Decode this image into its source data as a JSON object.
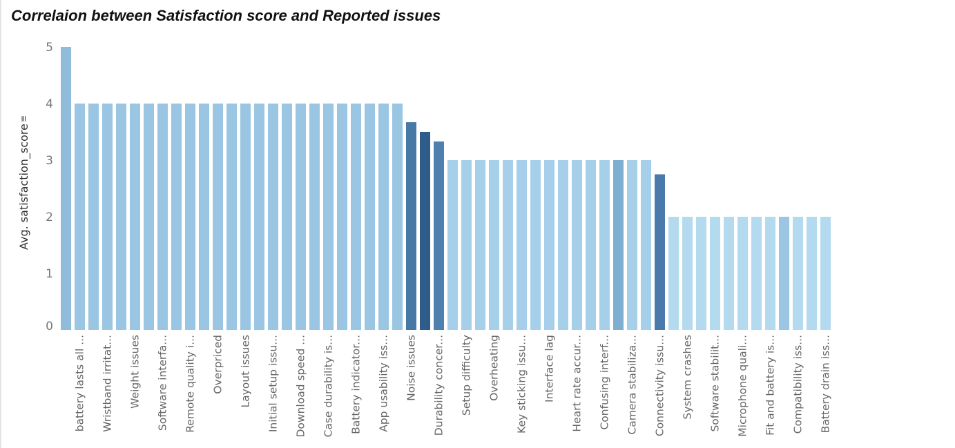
{
  "chart_data": {
    "type": "bar",
    "title": "Correlaion between Satisfaction score and Reported issues",
    "ylabel": "Avg. satisfaction_score",
    "ylabel_sort_marker": "≡",
    "xlabel": "",
    "ylim": [
      0,
      5
    ],
    "yticks": [
      0,
      1,
      2,
      3,
      4,
      5
    ],
    "grid": false,
    "legend": "none",
    "categories": [
      "",
      "battery lasts all ...",
      "",
      "Wristband irritat...",
      "",
      "Weight issues",
      "",
      "Software interfa...",
      "",
      "Remote quality i...",
      "",
      "Overpriced",
      "",
      "Layout issues",
      "",
      "Initial setup issu...",
      "",
      "Download speed ...",
      "",
      "Case durability is...",
      "",
      "Battery indicator...",
      "",
      "App usability iss...",
      "",
      "Noise issues",
      "",
      "Durability concer...",
      "",
      "Setup difficulty",
      "",
      "Overheating",
      "",
      "Key sticking issu...",
      "",
      "Interface lag",
      "",
      "Heart rate accur...",
      "",
      "Confusing interf...",
      "",
      "Camera stabiliza...",
      "",
      "Connectivity issu...",
      "",
      "System crashes",
      "",
      "Software stabilit...",
      "",
      "Microphone quali...",
      "",
      "Fit and battery is...",
      "",
      "Compatibility iss...",
      "",
      "Battery drain iss..."
    ],
    "values": [
      5,
      4,
      4,
      4,
      4,
      4,
      4,
      4,
      4,
      4,
      4,
      4,
      4,
      4,
      4,
      4,
      4,
      4,
      4,
      4,
      4,
      4,
      4,
      4,
      4,
      3.67,
      3.5,
      3.33,
      3,
      3,
      3,
      3,
      3,
      3,
      3,
      3,
      3,
      3,
      3,
      3,
      3,
      3,
      3,
      2.75,
      2,
      2,
      2,
      2,
      2,
      2,
      2,
      2,
      2,
      2,
      2,
      2
    ],
    "colors": [
      "#8fbcdb",
      "#9ac6e3",
      "#9ac6e3",
      "#9ac6e3",
      "#9ac6e3",
      "#9ac6e3",
      "#9ac6e3",
      "#9ac6e3",
      "#9ac6e3",
      "#9ac6e3",
      "#9ac6e3",
      "#9ac6e3",
      "#9ac6e3",
      "#9ac6e3",
      "#9ac6e3",
      "#9ac6e3",
      "#9ac6e3",
      "#9ac6e3",
      "#9ac6e3",
      "#9ac6e3",
      "#9ac6e3",
      "#9ac6e3",
      "#9ac6e3",
      "#9ac6e3",
      "#9ac6e3",
      "#4878a6",
      "#2e5d8c",
      "#4f7fae",
      "#a6d0ea",
      "#a6d0ea",
      "#a6d0ea",
      "#a6d0ea",
      "#a6d0ea",
      "#a6d0ea",
      "#a6d0ea",
      "#a6d0ea",
      "#a6d0ea",
      "#a6d0ea",
      "#a6d0ea",
      "#a6d0ea",
      "#7eaed2",
      "#a6d0ea",
      "#a6d0ea",
      "#4a7aab",
      "#b4daef",
      "#b4daef",
      "#b4daef",
      "#b4daef",
      "#b4daef",
      "#b4daef",
      "#b4daef",
      "#b4daef",
      "#9ac6e3",
      "#b4daef",
      "#b4daef",
      "#b4daef"
    ]
  }
}
